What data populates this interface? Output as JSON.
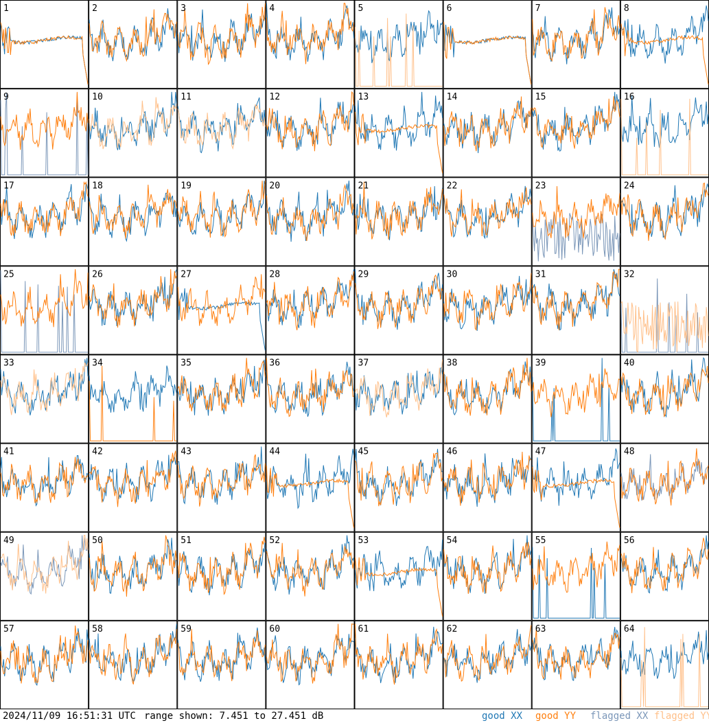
{
  "footer": {
    "timestamp": "2024/11/09 16:51:31 UTC",
    "range": "range shown: 7.451 to 27.451 dB"
  },
  "legend": [
    {
      "label": "good XX",
      "color": "#1f77b4"
    },
    {
      "label": "good YY",
      "color": "#ff7f0e"
    },
    {
      "label": "flagged XX",
      "color": "#7a96b8"
    },
    {
      "label": "flagged YY",
      "color": "#ffc08a"
    }
  ],
  "chart_data": {
    "type": "line",
    "grid": "8x8 small multiples",
    "ylim": [
      7.451,
      27.451
    ],
    "panels": [
      {
        "id": "1",
        "xx": "flat",
        "yy": "flat"
      },
      {
        "id": "2",
        "xx": "good",
        "yy": "good"
      },
      {
        "id": "3",
        "xx": "good",
        "yy": "good"
      },
      {
        "id": "4",
        "xx": "good",
        "yy": "good"
      },
      {
        "id": "5",
        "xx": "good",
        "yy": "spikes_flagged"
      },
      {
        "id": "6",
        "xx": "flat",
        "yy": "flat"
      },
      {
        "id": "7",
        "xx": "good",
        "yy": "good"
      },
      {
        "id": "8",
        "xx": "good",
        "yy": "flat"
      },
      {
        "id": "9",
        "xx": "spikes_flagged",
        "yy": "good"
      },
      {
        "id": "10",
        "xx": "good",
        "yy": "flagged"
      },
      {
        "id": "11",
        "xx": "good",
        "yy": "flagged"
      },
      {
        "id": "12",
        "xx": "good",
        "yy": "good"
      },
      {
        "id": "13",
        "xx": "good",
        "yy": "flat"
      },
      {
        "id": "14",
        "xx": "good",
        "yy": "good"
      },
      {
        "id": "15",
        "xx": "good",
        "yy": "good"
      },
      {
        "id": "16",
        "xx": "good",
        "yy": "spikes_flagged"
      },
      {
        "id": "17",
        "xx": "good",
        "yy": "good"
      },
      {
        "id": "18",
        "xx": "good",
        "yy": "good"
      },
      {
        "id": "19",
        "xx": "good",
        "yy": "good"
      },
      {
        "id": "20",
        "xx": "good",
        "yy": "good"
      },
      {
        "id": "21",
        "xx": "good",
        "yy": "good"
      },
      {
        "id": "22",
        "xx": "good",
        "yy": "good"
      },
      {
        "id": "23",
        "xx": "noisy_flagged",
        "yy": "good"
      },
      {
        "id": "24",
        "xx": "good",
        "yy": "good"
      },
      {
        "id": "25",
        "xx": "spikes_flagged",
        "yy": "good"
      },
      {
        "id": "26",
        "xx": "good",
        "yy": "good"
      },
      {
        "id": "27",
        "xx": "flat",
        "yy": "good"
      },
      {
        "id": "28",
        "xx": "good",
        "yy": "good"
      },
      {
        "id": "29",
        "xx": "good",
        "yy": "good"
      },
      {
        "id": "30",
        "xx": "good",
        "yy": "good"
      },
      {
        "id": "31",
        "xx": "good",
        "yy": "good"
      },
      {
        "id": "32",
        "xx": "spikes_flagged",
        "yy": "noisy_flagged"
      },
      {
        "id": "33",
        "xx": "good",
        "yy": "flagged"
      },
      {
        "id": "34",
        "xx": "good",
        "yy": "spikes_good"
      },
      {
        "id": "35",
        "xx": "good",
        "yy": "good"
      },
      {
        "id": "36",
        "xx": "good",
        "yy": "good"
      },
      {
        "id": "37",
        "xx": "good",
        "yy": "flagged"
      },
      {
        "id": "38",
        "xx": "good",
        "yy": "good"
      },
      {
        "id": "39",
        "xx": "spikes_good",
        "yy": "good"
      },
      {
        "id": "40",
        "xx": "good",
        "yy": "good"
      },
      {
        "id": "41",
        "xx": "good",
        "yy": "good"
      },
      {
        "id": "42",
        "xx": "good",
        "yy": "good"
      },
      {
        "id": "43",
        "xx": "good",
        "yy": "good"
      },
      {
        "id": "44",
        "xx": "good",
        "yy": "flat"
      },
      {
        "id": "45",
        "xx": "good",
        "yy": "good"
      },
      {
        "id": "46",
        "xx": "good",
        "yy": "good"
      },
      {
        "id": "47",
        "xx": "good",
        "yy": "flat"
      },
      {
        "id": "48",
        "xx": "flagged",
        "yy": "good"
      },
      {
        "id": "49",
        "xx": "flagged",
        "yy": "flagged"
      },
      {
        "id": "50",
        "xx": "good",
        "yy": "good"
      },
      {
        "id": "51",
        "xx": "good",
        "yy": "good"
      },
      {
        "id": "52",
        "xx": "good",
        "yy": "good"
      },
      {
        "id": "53",
        "xx": "good",
        "yy": "flat"
      },
      {
        "id": "54",
        "xx": "good",
        "yy": "good"
      },
      {
        "id": "55",
        "xx": "spikes_good",
        "yy": "good"
      },
      {
        "id": "56",
        "xx": "good",
        "yy": "good"
      },
      {
        "id": "57",
        "xx": "good",
        "yy": "good"
      },
      {
        "id": "58",
        "xx": "good",
        "yy": "good"
      },
      {
        "id": "59",
        "xx": "good",
        "yy": "good"
      },
      {
        "id": "60",
        "xx": "good",
        "yy": "good"
      },
      {
        "id": "61",
        "xx": "good",
        "yy": "good"
      },
      {
        "id": "62",
        "xx": "good",
        "yy": "good"
      },
      {
        "id": "63",
        "xx": "good",
        "yy": "good"
      },
      {
        "id": "64",
        "xx": "good",
        "yy": "spikes_flagged"
      }
    ]
  }
}
